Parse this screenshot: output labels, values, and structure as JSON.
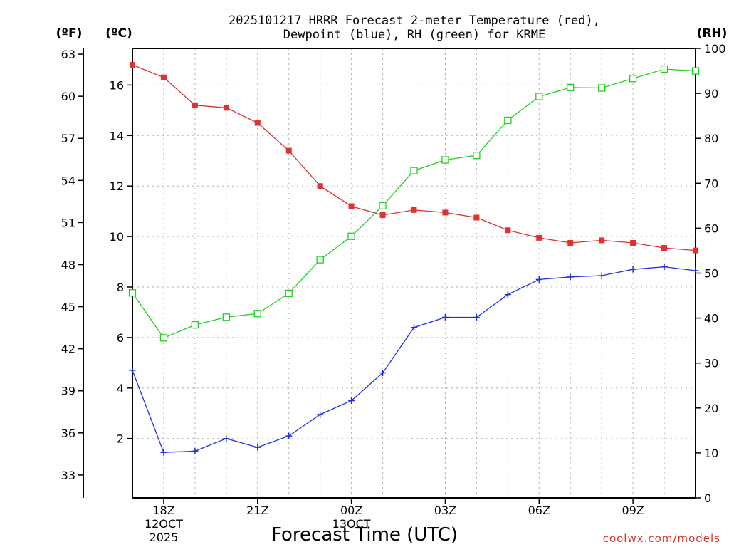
{
  "chart_data": {
    "type": "line",
    "title": [
      "2025101217 HRRR Forecast 2-meter Temperature (red),",
      "Dewpoint (blue), RH (green) for KRME"
    ],
    "xlabel": "Forecast Time (UTC)",
    "credit": "coolwx.com/models",
    "axes": {
      "left_outer_unit": "(ºF)",
      "left_inner_unit": "(ºC)",
      "right_unit": "(RH)",
      "celsius_range": [
        -0.35,
        17.45
      ],
      "fahrenheit_ticks": [
        "33",
        "36",
        "39",
        "42",
        "45",
        "48",
        "51",
        "54",
        "57",
        "60",
        "63"
      ],
      "celsius_ticks": [
        "2",
        "4",
        "6",
        "8",
        "10",
        "12",
        "14",
        "16"
      ],
      "rh_range": [
        0,
        100
      ],
      "rh_ticks": [
        "0",
        "10",
        "20",
        "30",
        "40",
        "50",
        "60",
        "70",
        "80",
        "90",
        "100"
      ]
    },
    "x_hours": [
      17,
      18,
      19,
      20,
      21,
      22,
      23,
      24,
      25,
      26,
      27,
      28,
      29,
      30,
      31,
      32,
      33,
      34,
      35
    ],
    "x_range": [
      17,
      35
    ],
    "x_ticks": [
      {
        "hour": 18,
        "lines": [
          "18Z",
          "12OCT",
          "2025"
        ]
      },
      {
        "hour": 21,
        "lines": [
          "21Z"
        ]
      },
      {
        "hour": 24,
        "lines": [
          "00Z",
          "13OCT"
        ]
      },
      {
        "hour": 27,
        "lines": [
          "03Z"
        ]
      },
      {
        "hour": 30,
        "lines": [
          "06Z"
        ]
      },
      {
        "hour": 33,
        "lines": [
          "09Z"
        ]
      }
    ],
    "series": [
      {
        "name": "Temperature",
        "axis": "celsius",
        "color": "#e03030",
        "marker": "filled-square",
        "values": [
          16.8,
          16.3,
          15.2,
          15.1,
          14.5,
          13.4,
          12.0,
          11.2,
          10.85,
          11.05,
          10.95,
          10.75,
          10.25,
          9.95,
          9.75,
          9.85,
          9.75,
          9.55,
          9.45
        ]
      },
      {
        "name": "Dewpoint",
        "axis": "celsius",
        "color": "#2030e0",
        "marker": "plus",
        "values": [
          4.7,
          1.45,
          1.5,
          2.0,
          1.65,
          2.1,
          2.95,
          3.5,
          4.6,
          6.4,
          6.8,
          6.8,
          7.7,
          8.3,
          8.4,
          8.45,
          8.7,
          8.8,
          8.65
        ]
      },
      {
        "name": "RH",
        "axis": "rh",
        "color": "#20d020",
        "marker": "open-square",
        "values": [
          45.6,
          35.6,
          38.5,
          40.2,
          41.0,
          45.5,
          53.0,
          58.2,
          65.0,
          72.8,
          75.2,
          76.2,
          84.0,
          89.3,
          91.3,
          91.2,
          93.3,
          95.4,
          95.0
        ]
      }
    ]
  }
}
